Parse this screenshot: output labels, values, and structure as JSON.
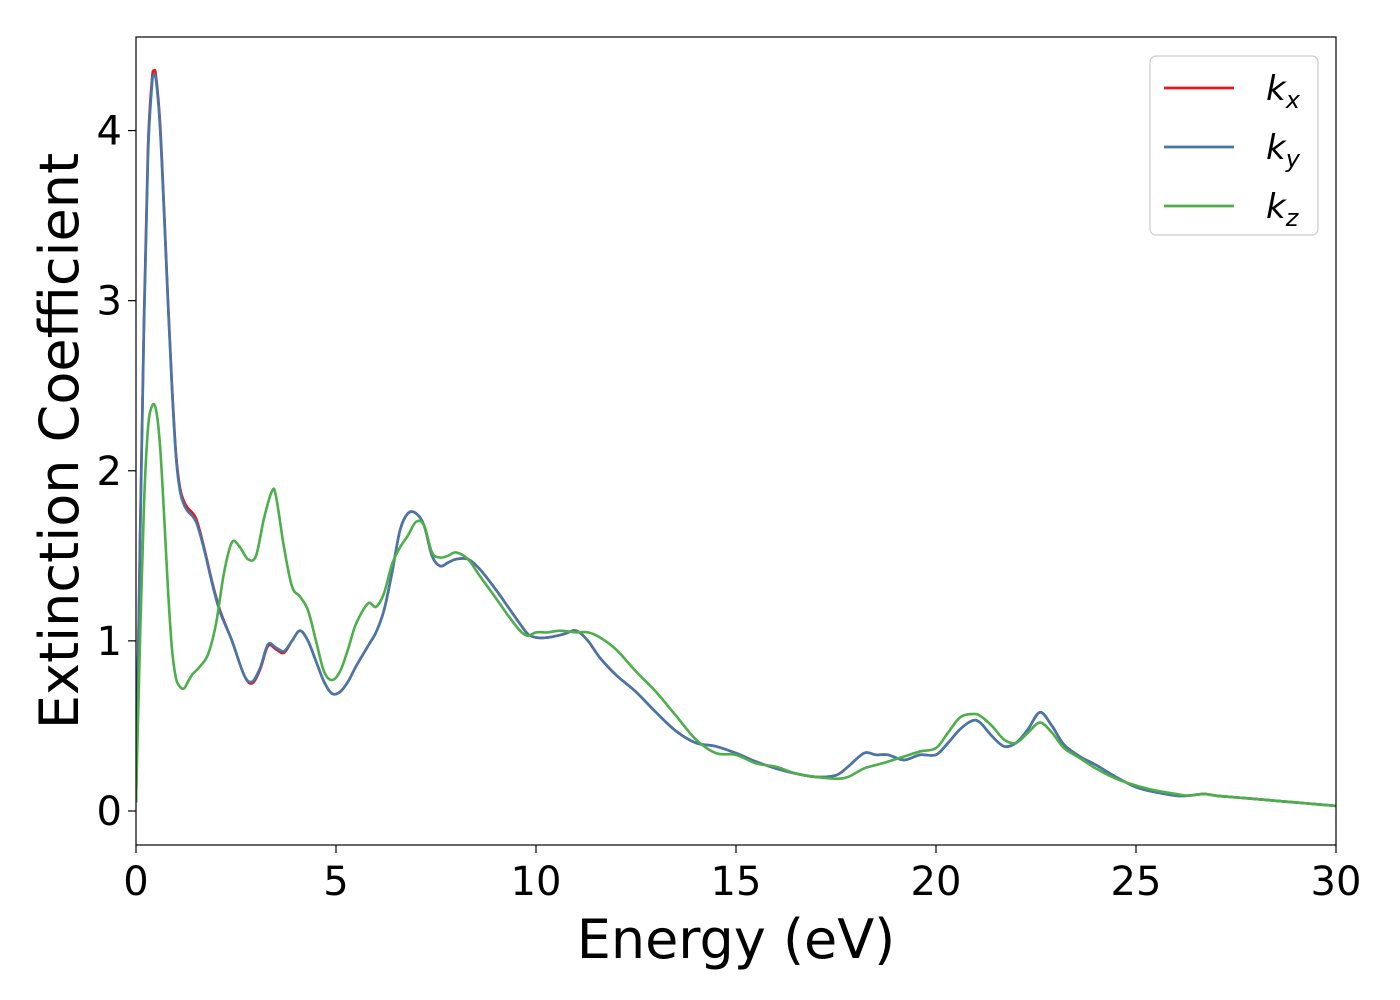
{
  "chart_data": {
    "type": "line",
    "title": "",
    "xlabel": "Energy (eV)",
    "ylabel": "Extinction Coefficient",
    "xlim": [
      0,
      30
    ],
    "ylim": [
      -0.2,
      4.55
    ],
    "xticks": [
      0,
      5,
      10,
      15,
      20,
      25,
      30
    ],
    "yticks": [
      0,
      1,
      2,
      3,
      4
    ],
    "grid": false,
    "legend_position": "top-right",
    "series": [
      {
        "name": "k",
        "subscript": "x",
        "color": "#e41a1c",
        "x": [
          0,
          0.1,
          0.2,
          0.3,
          0.4,
          0.45,
          0.5,
          0.6,
          0.7,
          0.8,
          0.9,
          1.0,
          1.1,
          1.2,
          1.3,
          1.5,
          1.7,
          1.9,
          2.1,
          2.4,
          2.7,
          2.9,
          3.1,
          3.3,
          3.5,
          3.7,
          3.9,
          4.1,
          4.3,
          4.5,
          4.7,
          4.9,
          5.1,
          5.3,
          5.5,
          5.8,
          6.0,
          6.2,
          6.4,
          6.6,
          6.8,
          7.0,
          7.2,
          7.4,
          7.6,
          7.8,
          8.0,
          8.3,
          8.6,
          9.0,
          9.3,
          9.6,
          9.8,
          10.0,
          10.3,
          10.7,
          11.0,
          11.3,
          11.6,
          12.0,
          12.5,
          13.0,
          13.5,
          14.0,
          14.5,
          15.0,
          15.5,
          16.0,
          16.5,
          17.0,
          17.5,
          17.8,
          18.2,
          18.5,
          18.8,
          19.2,
          19.6,
          20.0,
          20.3,
          20.6,
          20.9,
          21.1,
          21.4,
          21.7,
          22.0,
          22.3,
          22.6,
          22.9,
          23.2,
          23.6,
          24.0,
          24.5,
          25.0,
          25.5,
          26.0,
          26.3,
          26.7,
          27.0,
          27.5,
          28.0,
          28.5,
          29.0,
          29.5,
          30.0
        ],
        "y": [
          0.05,
          1.6,
          2.9,
          3.9,
          4.3,
          4.35,
          4.32,
          4.05,
          3.55,
          3.0,
          2.5,
          2.1,
          1.9,
          1.82,
          1.78,
          1.72,
          1.55,
          1.35,
          1.18,
          1.0,
          0.8,
          0.75,
          0.83,
          0.97,
          0.95,
          0.93,
          1.0,
          1.06,
          1.0,
          0.88,
          0.76,
          0.69,
          0.7,
          0.76,
          0.85,
          0.97,
          1.05,
          1.18,
          1.4,
          1.65,
          1.75,
          1.75,
          1.68,
          1.5,
          1.44,
          1.46,
          1.48,
          1.48,
          1.42,
          1.3,
          1.2,
          1.1,
          1.04,
          1.02,
          1.02,
          1.04,
          1.06,
          1.0,
          0.9,
          0.8,
          0.7,
          0.58,
          0.47,
          0.4,
          0.38,
          0.34,
          0.29,
          0.25,
          0.22,
          0.2,
          0.21,
          0.26,
          0.34,
          0.33,
          0.33,
          0.3,
          0.33,
          0.33,
          0.4,
          0.48,
          0.53,
          0.52,
          0.44,
          0.38,
          0.4,
          0.48,
          0.58,
          0.5,
          0.39,
          0.32,
          0.27,
          0.2,
          0.14,
          0.11,
          0.09,
          0.09,
          0.1,
          0.09,
          0.08,
          0.07,
          0.06,
          0.05,
          0.04,
          0.03
        ]
      },
      {
        "name": "k",
        "subscript": "y",
        "color": "#4477aa",
        "x": [
          0,
          0.1,
          0.2,
          0.3,
          0.4,
          0.45,
          0.5,
          0.6,
          0.7,
          0.8,
          0.9,
          1.0,
          1.1,
          1.2,
          1.3,
          1.5,
          1.7,
          1.9,
          2.1,
          2.4,
          2.7,
          2.9,
          3.1,
          3.3,
          3.5,
          3.7,
          3.9,
          4.1,
          4.3,
          4.5,
          4.7,
          4.9,
          5.1,
          5.3,
          5.5,
          5.8,
          6.0,
          6.2,
          6.4,
          6.6,
          6.8,
          7.0,
          7.2,
          7.4,
          7.6,
          7.8,
          8.0,
          8.3,
          8.6,
          9.0,
          9.3,
          9.6,
          9.8,
          10.0,
          10.3,
          10.7,
          11.0,
          11.3,
          11.6,
          12.0,
          12.5,
          13.0,
          13.5,
          14.0,
          14.5,
          15.0,
          15.5,
          16.0,
          16.5,
          17.0,
          17.5,
          17.8,
          18.2,
          18.5,
          18.8,
          19.2,
          19.6,
          20.0,
          20.3,
          20.6,
          20.9,
          21.1,
          21.4,
          21.7,
          22.0,
          22.3,
          22.6,
          22.9,
          23.2,
          23.6,
          24.0,
          24.5,
          25.0,
          25.5,
          26.0,
          26.3,
          26.7,
          27.0,
          27.5,
          28.0,
          28.5,
          29.0,
          29.5,
          30.0
        ],
        "y": [
          0.05,
          1.55,
          2.85,
          3.85,
          4.27,
          4.32,
          4.3,
          4.02,
          3.52,
          2.98,
          2.48,
          2.08,
          1.88,
          1.8,
          1.76,
          1.7,
          1.54,
          1.34,
          1.17,
          1.0,
          0.8,
          0.76,
          0.84,
          0.98,
          0.96,
          0.94,
          1.0,
          1.06,
          1.0,
          0.88,
          0.76,
          0.69,
          0.7,
          0.76,
          0.85,
          0.97,
          1.05,
          1.18,
          1.4,
          1.65,
          1.75,
          1.75,
          1.68,
          1.5,
          1.44,
          1.46,
          1.48,
          1.48,
          1.42,
          1.3,
          1.2,
          1.1,
          1.04,
          1.02,
          1.02,
          1.04,
          1.06,
          1.0,
          0.9,
          0.8,
          0.7,
          0.58,
          0.47,
          0.4,
          0.38,
          0.34,
          0.29,
          0.25,
          0.22,
          0.2,
          0.21,
          0.26,
          0.34,
          0.33,
          0.33,
          0.3,
          0.33,
          0.33,
          0.4,
          0.48,
          0.53,
          0.52,
          0.44,
          0.38,
          0.4,
          0.48,
          0.58,
          0.5,
          0.39,
          0.32,
          0.27,
          0.2,
          0.14,
          0.11,
          0.09,
          0.09,
          0.1,
          0.09,
          0.08,
          0.07,
          0.06,
          0.05,
          0.04,
          0.03
        ]
      },
      {
        "name": "k",
        "subscript": "z",
        "color": "#4daf4a",
        "x": [
          0,
          0.1,
          0.2,
          0.3,
          0.4,
          0.5,
          0.6,
          0.7,
          0.8,
          0.9,
          1.0,
          1.1,
          1.2,
          1.3,
          1.4,
          1.6,
          1.8,
          2.0,
          2.2,
          2.4,
          2.6,
          2.8,
          3.0,
          3.2,
          3.4,
          3.5,
          3.7,
          3.9,
          4.1,
          4.3,
          4.5,
          4.7,
          4.9,
          5.1,
          5.3,
          5.5,
          5.8,
          6.0,
          6.2,
          6.4,
          6.6,
          6.8,
          7.0,
          7.2,
          7.4,
          7.6,
          7.8,
          8.0,
          8.3,
          8.6,
          9.0,
          9.3,
          9.6,
          9.8,
          10.0,
          10.3,
          10.6,
          11.0,
          11.3,
          11.6,
          12.0,
          12.5,
          13.0,
          13.5,
          14.0,
          14.5,
          15.0,
          15.5,
          16.0,
          16.5,
          17.0,
          17.5,
          17.8,
          18.2,
          18.5,
          18.8,
          19.2,
          19.6,
          20.0,
          20.3,
          20.6,
          20.9,
          21.1,
          21.4,
          21.7,
          22.0,
          22.3,
          22.6,
          22.9,
          23.2,
          23.6,
          24.0,
          24.5,
          25.0,
          25.5,
          26.0,
          26.3,
          26.7,
          27.0,
          27.5,
          28.0,
          28.5,
          29.0,
          29.5,
          30.0
        ],
        "y": [
          0.05,
          1.0,
          1.8,
          2.25,
          2.38,
          2.36,
          2.15,
          1.75,
          1.3,
          0.95,
          0.78,
          0.73,
          0.72,
          0.76,
          0.8,
          0.85,
          0.92,
          1.1,
          1.4,
          1.58,
          1.55,
          1.48,
          1.5,
          1.72,
          1.88,
          1.85,
          1.55,
          1.32,
          1.26,
          1.18,
          1.0,
          0.82,
          0.77,
          0.82,
          0.95,
          1.1,
          1.22,
          1.2,
          1.28,
          1.45,
          1.55,
          1.62,
          1.7,
          1.68,
          1.52,
          1.49,
          1.5,
          1.52,
          1.48,
          1.38,
          1.25,
          1.15,
          1.06,
          1.03,
          1.05,
          1.05,
          1.06,
          1.05,
          1.05,
          1.02,
          0.95,
          0.82,
          0.7,
          0.56,
          0.42,
          0.34,
          0.33,
          0.28,
          0.26,
          0.22,
          0.2,
          0.19,
          0.2,
          0.25,
          0.27,
          0.29,
          0.32,
          0.35,
          0.37,
          0.46,
          0.55,
          0.57,
          0.56,
          0.5,
          0.42,
          0.4,
          0.46,
          0.52,
          0.46,
          0.37,
          0.31,
          0.25,
          0.19,
          0.15,
          0.12,
          0.1,
          0.09,
          0.1,
          0.09,
          0.08,
          0.07,
          0.06,
          0.05,
          0.04,
          0.03
        ]
      }
    ]
  }
}
